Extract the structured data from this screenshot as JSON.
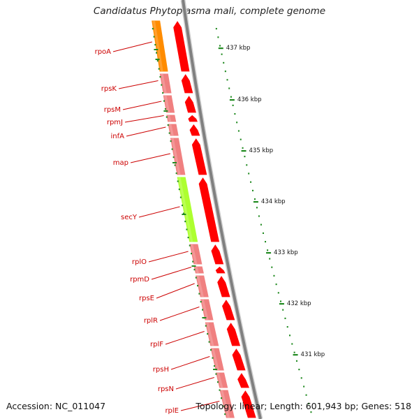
{
  "title": "Candidatus Phytoplasma mali, complete genome",
  "footer": {
    "accession": "Accession: NC_011047",
    "summary": "Topology: linear; Length: 601,943 bp; Genes: 518"
  },
  "colors": {
    "cds_arrow": "#ff0000",
    "gene_track": "#f08080",
    "rpoA_gene": "#ff8c00",
    "secY_gene": "#adff2f",
    "gene_label": "#cc0000",
    "tick": "#228b22",
    "backbone": "#808080"
  },
  "genes": [
    {
      "name": "rpoA"
    },
    {
      "name": "rpsK"
    },
    {
      "name": "rpsM"
    },
    {
      "name": "rpmJ"
    },
    {
      "name": "infA"
    },
    {
      "name": "map"
    },
    {
      "name": "secY"
    },
    {
      "name": "rplO"
    },
    {
      "name": "rpmD"
    },
    {
      "name": "rpsE"
    },
    {
      "name": "rplR"
    },
    {
      "name": "rplF"
    },
    {
      "name": "rpsH"
    },
    {
      "name": "rpsN"
    },
    {
      "name": "rplE"
    }
  ],
  "kbp_ticks": [
    {
      "label": "437 kbp"
    },
    {
      "label": "436 kbp"
    },
    {
      "label": "435 kbp"
    },
    {
      "label": "434 kbp"
    },
    {
      "label": "433 kbp"
    },
    {
      "label": "432 kbp"
    },
    {
      "label": "431 kbp"
    }
  ]
}
